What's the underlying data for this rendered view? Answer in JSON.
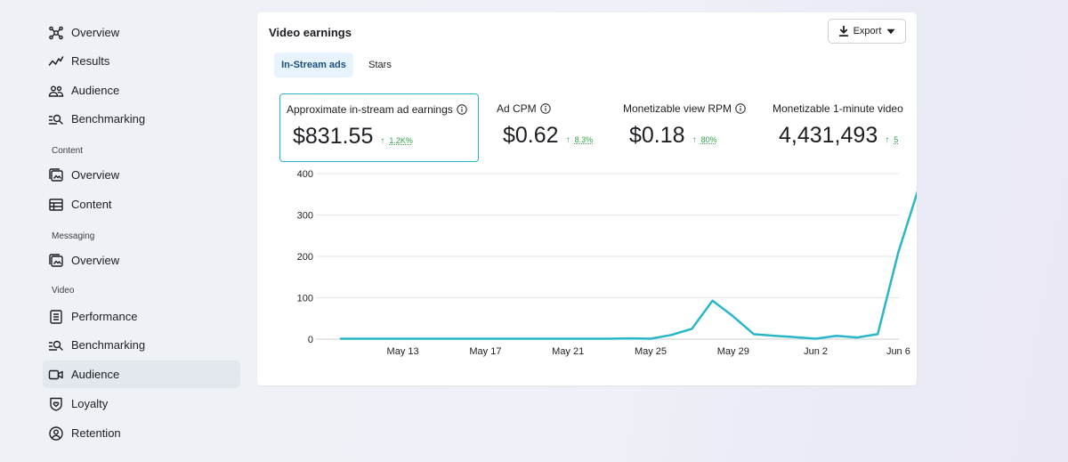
{
  "sidebar": {
    "top_items": [
      {
        "label": "Overview",
        "icon": "network-icon"
      },
      {
        "label": "Results",
        "icon": "trend-icon"
      },
      {
        "label": "Audience",
        "icon": "people-icon"
      },
      {
        "label": "Benchmarking",
        "icon": "benchmark-icon"
      }
    ],
    "sections": [
      {
        "title": "Content",
        "items": [
          {
            "label": "Overview",
            "icon": "content-overview-icon"
          },
          {
            "label": "Content",
            "icon": "table-icon"
          }
        ]
      },
      {
        "title": "Messaging",
        "items": [
          {
            "label": "Overview",
            "icon": "messaging-overview-icon"
          }
        ]
      },
      {
        "title": "Video",
        "items": [
          {
            "label": "Performance",
            "icon": "document-icon"
          },
          {
            "label": "Benchmarking",
            "icon": "benchmark-icon"
          },
          {
            "label": "Audience",
            "icon": "video-camera-icon",
            "active": true
          },
          {
            "label": "Loyalty",
            "icon": "shield-heart-icon"
          },
          {
            "label": "Retention",
            "icon": "user-circle-icon"
          }
        ]
      }
    ]
  },
  "card": {
    "title": "Video earnings",
    "export_label": "Export",
    "tabs": [
      {
        "label": "In-Stream ads",
        "active": true
      },
      {
        "label": "Stars",
        "active": false
      }
    ],
    "metrics": [
      {
        "label": "Approximate in-stream ad earnings",
        "value": "$831.55",
        "change": "1.2K%",
        "selected": true
      },
      {
        "label": "Ad CPM",
        "value": "$0.62",
        "change": "8.3%"
      },
      {
        "label": "Monetizable view RPM",
        "value": "$0.18",
        "change": "80%"
      },
      {
        "label": "Monetizable 1-minute video",
        "value": "4,431,493",
        "change": "5"
      }
    ]
  },
  "colors": {
    "accent": "#29b6c6",
    "positive": "#31a24c",
    "tab_active_bg": "#e7f3ff",
    "tab_active_text": "#1b4f77"
  },
  "chart_data": {
    "type": "line",
    "x": [
      "May 10",
      "May 11",
      "May 12",
      "May 13",
      "May 14",
      "May 15",
      "May 16",
      "May 17",
      "May 18",
      "May 19",
      "May 20",
      "May 21",
      "May 22",
      "May 23",
      "May 24",
      "May 25",
      "May 26",
      "May 27",
      "May 28",
      "May 29",
      "May 30",
      "May 31",
      "Jun 1",
      "Jun 2",
      "Jun 3",
      "Jun 4",
      "Jun 5",
      "Jun 6",
      "Jun 7"
    ],
    "series": [
      {
        "values": [
          1,
          1,
          1,
          1,
          1,
          1,
          1,
          1,
          1,
          1,
          1,
          1,
          1,
          1,
          2,
          1,
          10,
          25,
          93,
          55,
          12,
          8,
          5,
          1,
          8,
          4,
          12,
          210,
          368
        ]
      }
    ],
    "x_tick_labels": [
      "May 13",
      "May 17",
      "May 21",
      "May 25",
      "May 29",
      "Jun 2",
      "Jun 6"
    ],
    "y_ticks": [
      0,
      100,
      200,
      300,
      400
    ],
    "ylim": [
      0,
      400
    ],
    "grid": true,
    "line_color": "#29b6c6"
  }
}
